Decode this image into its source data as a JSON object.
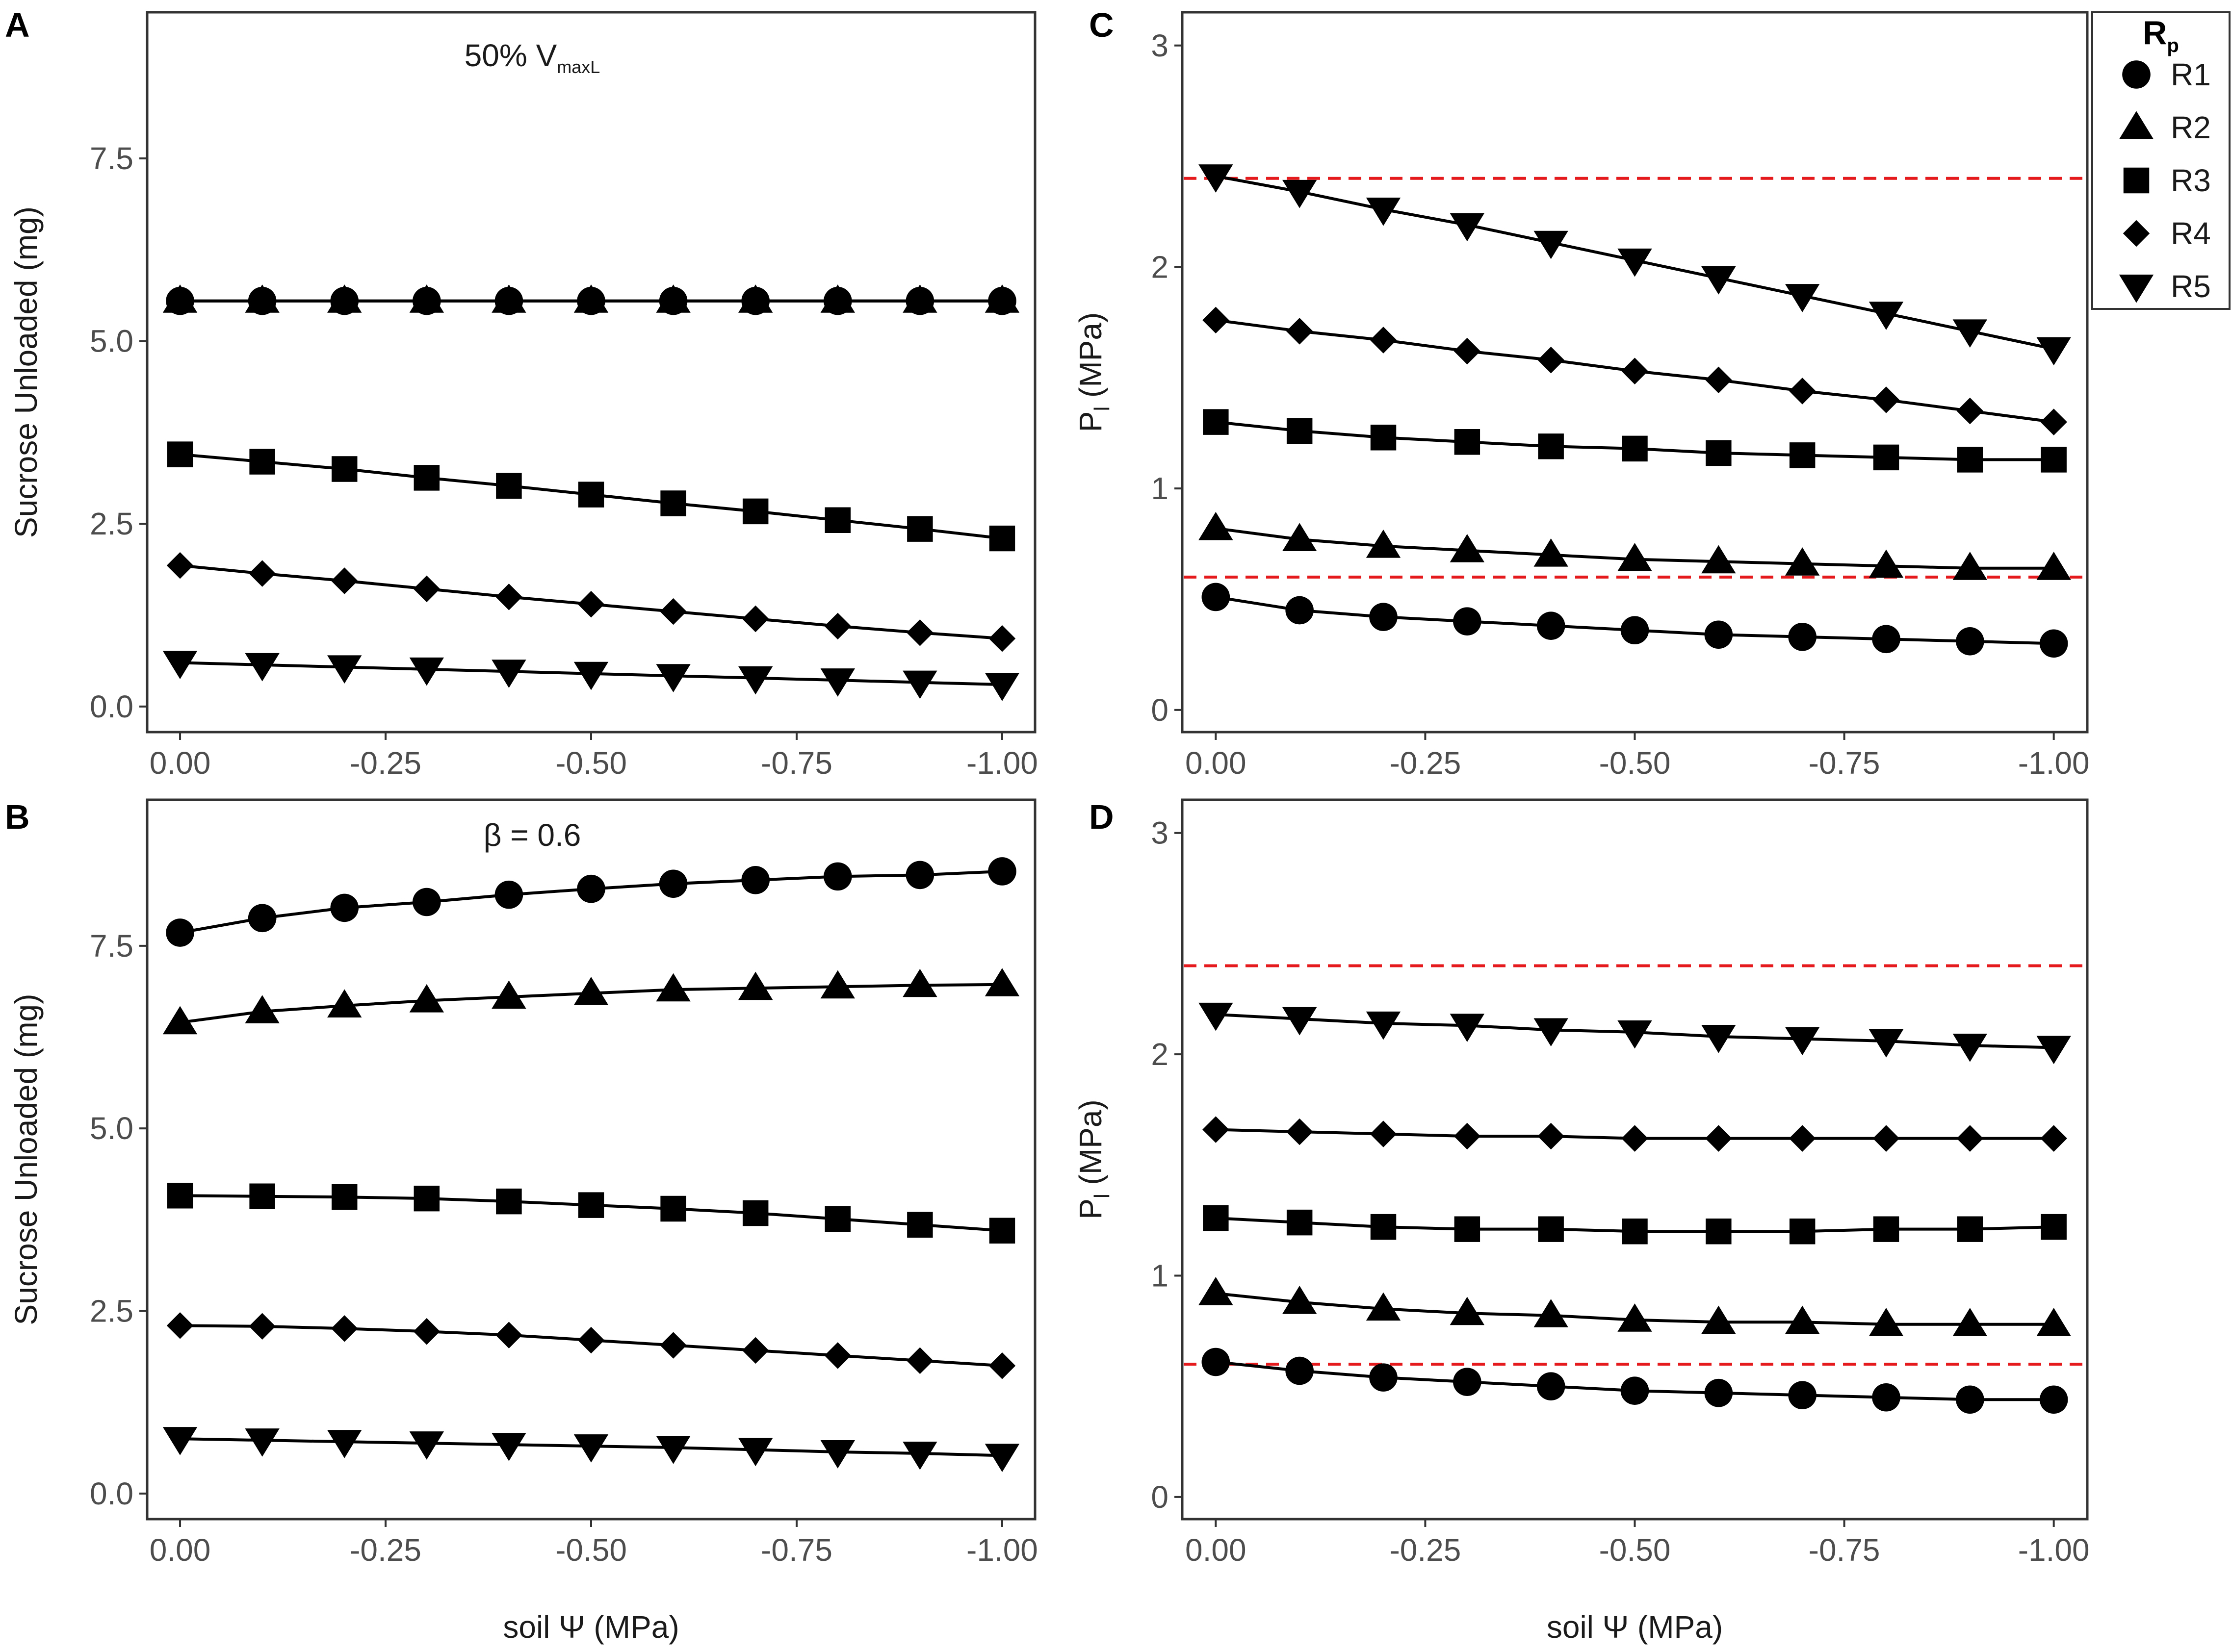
{
  "xaxis_label": "soil Ψ (MPa)",
  "colors": {
    "line": "#000000",
    "threshold": "#e41a1c",
    "frame": "#333333",
    "tick_text": "#4d4d4d"
  },
  "legend": {
    "title": "R",
    "title_sub": "p",
    "items": [
      {
        "label": "R1",
        "shape": "circle"
      },
      {
        "label": "R2",
        "shape": "triangle"
      },
      {
        "label": "R3",
        "shape": "square"
      },
      {
        "label": "R4",
        "shape": "diamond"
      },
      {
        "label": "R5",
        "shape": "triangle-down"
      }
    ]
  },
  "chart_data": [
    {
      "id": "A",
      "letter": "A",
      "type": "line",
      "annotation": "50% V",
      "annotation_sub": "maxL",
      "ylabel": "Sucrose Unloaded (mg)",
      "ylabel_sub": "",
      "xlim": [
        0.04,
        -1.04
      ],
      "ylim": [
        -0.35,
        9.5
      ],
      "xticks": [
        0,
        -0.25,
        -0.5,
        -0.75,
        -1.0
      ],
      "xtick_labels": [
        "0.00",
        "-0.25",
        "-0.50",
        "-0.75",
        "-1.00"
      ],
      "yticks": [
        0,
        2.5,
        5.0,
        7.5
      ],
      "ytick_labels": [
        "0.0",
        "2.5",
        "5.0",
        "7.5"
      ],
      "hlines": [],
      "x": [
        0,
        -0.1,
        -0.2,
        -0.3,
        -0.4,
        -0.5,
        -0.6,
        -0.7,
        -0.8,
        -0.9,
        -1.0
      ],
      "series": [
        {
          "name": "R1",
          "shape": "circle",
          "values": [
            5.55,
            5.55,
            5.55,
            5.55,
            5.55,
            5.55,
            5.55,
            5.55,
            5.55,
            5.55,
            5.55
          ]
        },
        {
          "name": "R2",
          "shape": "triangle",
          "values": [
            5.55,
            5.55,
            5.55,
            5.55,
            5.55,
            5.55,
            5.55,
            5.55,
            5.55,
            5.55,
            5.55
          ]
        },
        {
          "name": "R3",
          "shape": "square",
          "values": [
            3.45,
            3.35,
            3.25,
            3.13,
            3.02,
            2.9,
            2.78,
            2.67,
            2.55,
            2.43,
            2.3
          ]
        },
        {
          "name": "R4",
          "shape": "diamond",
          "values": [
            1.93,
            1.82,
            1.72,
            1.61,
            1.5,
            1.4,
            1.3,
            1.2,
            1.1,
            1.01,
            0.93
          ]
        },
        {
          "name": "R5",
          "shape": "triangle-down",
          "values": [
            0.6,
            0.57,
            0.54,
            0.51,
            0.48,
            0.45,
            0.42,
            0.39,
            0.36,
            0.33,
            0.3
          ]
        }
      ]
    },
    {
      "id": "B",
      "letter": "B",
      "type": "line",
      "annotation": "β = 0.6",
      "annotation_sub": "",
      "ylabel": "Sucrose Unloaded (mg)",
      "ylabel_sub": "",
      "xlim": [
        0.04,
        -1.04
      ],
      "ylim": [
        -0.35,
        9.5
      ],
      "xticks": [
        0,
        -0.25,
        -0.5,
        -0.75,
        -1.0
      ],
      "xtick_labels": [
        "0.00",
        "-0.25",
        "-0.50",
        "-0.75",
        "-1.00"
      ],
      "yticks": [
        0,
        2.5,
        5.0,
        7.5
      ],
      "ytick_labels": [
        "0.0",
        "2.5",
        "5.0",
        "7.5"
      ],
      "hlines": [],
      "x": [
        0,
        -0.1,
        -0.2,
        -0.3,
        -0.4,
        -0.5,
        -0.6,
        -0.7,
        -0.8,
        -0.9,
        -1.0
      ],
      "series": [
        {
          "name": "R1",
          "shape": "circle",
          "values": [
            7.68,
            7.88,
            8.02,
            8.1,
            8.2,
            8.28,
            8.35,
            8.4,
            8.45,
            8.47,
            8.52
          ]
        },
        {
          "name": "R2",
          "shape": "triangle",
          "values": [
            6.45,
            6.6,
            6.68,
            6.75,
            6.8,
            6.85,
            6.9,
            6.92,
            6.94,
            6.96,
            6.97
          ]
        },
        {
          "name": "R3",
          "shape": "square",
          "values": [
            4.08,
            4.07,
            4.06,
            4.04,
            4.0,
            3.95,
            3.9,
            3.84,
            3.76,
            3.68,
            3.6
          ]
        },
        {
          "name": "R4",
          "shape": "diamond",
          "values": [
            2.3,
            2.29,
            2.26,
            2.22,
            2.17,
            2.1,
            2.03,
            1.96,
            1.89,
            1.82,
            1.75
          ]
        },
        {
          "name": "R5",
          "shape": "triangle-down",
          "values": [
            0.75,
            0.73,
            0.71,
            0.69,
            0.67,
            0.65,
            0.63,
            0.6,
            0.57,
            0.55,
            0.52
          ]
        }
      ]
    },
    {
      "id": "C",
      "letter": "C",
      "type": "line",
      "annotation": "",
      "annotation_sub": "",
      "ylabel": "P",
      "ylabel_sub": "l",
      "ylabel_units": " (MPa)",
      "xlim": [
        0.04,
        -1.04
      ],
      "ylim": [
        -0.1,
        3.15
      ],
      "xticks": [
        0,
        -0.25,
        -0.5,
        -0.75,
        -1.0
      ],
      "xtick_labels": [
        "0.00",
        "-0.25",
        "-0.50",
        "-0.75",
        "-1.00"
      ],
      "yticks": [
        0,
        1,
        2,
        3
      ],
      "ytick_labels": [
        "0",
        "1",
        "2",
        "3"
      ],
      "hlines": [
        0.6,
        2.4
      ],
      "x": [
        0,
        -0.1,
        -0.2,
        -0.3,
        -0.4,
        -0.5,
        -0.6,
        -0.7,
        -0.8,
        -0.9,
        -1.0
      ],
      "series": [
        {
          "name": "R1",
          "shape": "circle",
          "values": [
            0.51,
            0.45,
            0.42,
            0.4,
            0.38,
            0.36,
            0.34,
            0.33,
            0.32,
            0.31,
            0.3
          ]
        },
        {
          "name": "R2",
          "shape": "triangle",
          "values": [
            0.82,
            0.77,
            0.74,
            0.72,
            0.7,
            0.68,
            0.67,
            0.66,
            0.65,
            0.64,
            0.64
          ]
        },
        {
          "name": "R3",
          "shape": "square",
          "values": [
            1.3,
            1.26,
            1.23,
            1.21,
            1.19,
            1.18,
            1.16,
            1.15,
            1.14,
            1.13,
            1.13
          ]
        },
        {
          "name": "R4",
          "shape": "diamond",
          "values": [
            1.76,
            1.71,
            1.67,
            1.62,
            1.58,
            1.53,
            1.49,
            1.44,
            1.4,
            1.35,
            1.3
          ]
        },
        {
          "name": "R5",
          "shape": "triangle-down",
          "values": [
            2.41,
            2.34,
            2.26,
            2.19,
            2.11,
            2.03,
            1.95,
            1.87,
            1.79,
            1.71,
            1.63
          ]
        }
      ]
    },
    {
      "id": "D",
      "letter": "D",
      "type": "line",
      "annotation": "",
      "annotation_sub": "",
      "ylabel": "P",
      "ylabel_sub": "l",
      "ylabel_units": " (MPa)",
      "xlim": [
        0.04,
        -1.04
      ],
      "ylim": [
        -0.1,
        3.15
      ],
      "xticks": [
        0,
        -0.25,
        -0.5,
        -0.75,
        -1.0
      ],
      "xtick_labels": [
        "0.00",
        "-0.25",
        "-0.50",
        "-0.75",
        "-1.00"
      ],
      "yticks": [
        0,
        1,
        2,
        3
      ],
      "ytick_labels": [
        "0",
        "1",
        "2",
        "3"
      ],
      "hlines": [
        0.6,
        2.4
      ],
      "x": [
        0,
        -0.1,
        -0.2,
        -0.3,
        -0.4,
        -0.5,
        -0.6,
        -0.7,
        -0.8,
        -0.9,
        -1.0
      ],
      "series": [
        {
          "name": "R1",
          "shape": "circle",
          "values": [
            0.61,
            0.57,
            0.54,
            0.52,
            0.5,
            0.48,
            0.47,
            0.46,
            0.45,
            0.44,
            0.44
          ]
        },
        {
          "name": "R2",
          "shape": "triangle",
          "values": [
            0.92,
            0.88,
            0.85,
            0.83,
            0.82,
            0.8,
            0.79,
            0.79,
            0.78,
            0.78,
            0.78
          ]
        },
        {
          "name": "R3",
          "shape": "square",
          "values": [
            1.26,
            1.24,
            1.22,
            1.21,
            1.21,
            1.2,
            1.2,
            1.2,
            1.21,
            1.21,
            1.22
          ]
        },
        {
          "name": "R4",
          "shape": "diamond",
          "values": [
            1.66,
            1.65,
            1.64,
            1.63,
            1.63,
            1.62,
            1.62,
            1.62,
            1.62,
            1.62,
            1.62
          ]
        },
        {
          "name": "R5",
          "shape": "triangle-down",
          "values": [
            2.18,
            2.16,
            2.14,
            2.13,
            2.11,
            2.1,
            2.08,
            2.07,
            2.06,
            2.04,
            2.03
          ]
        }
      ]
    }
  ]
}
